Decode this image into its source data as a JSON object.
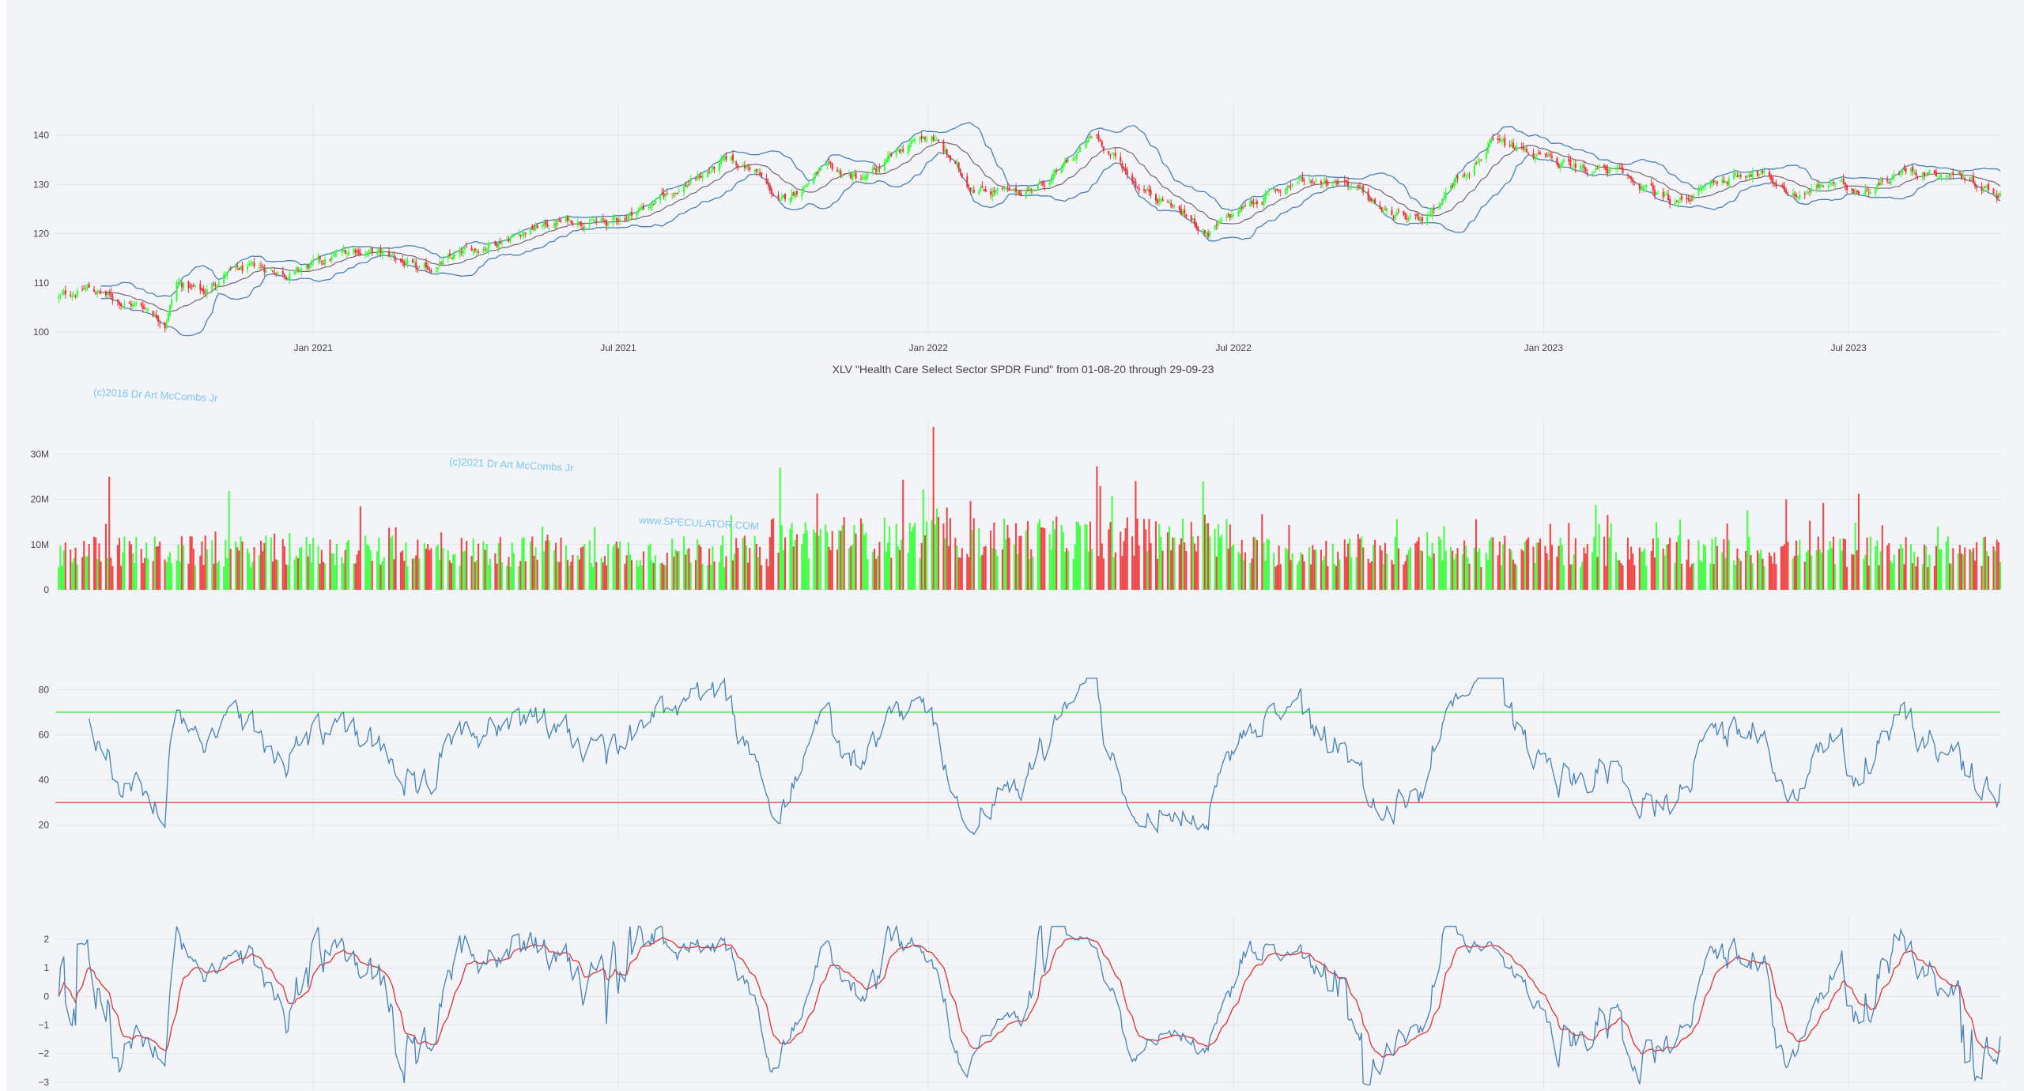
{
  "chart_title": "XLV \"Health Care Select Sector SPDR Fund\" from 01-08-20 through 29-09-23",
  "watermarks": [
    "(c)2016 Dr Art McCombs Jr",
    "(c)2021 Dr Art McCombs Jr",
    "www.SPECULATOR.COM"
  ],
  "colors": {
    "up": "#33ff33",
    "down": "#ee3333",
    "band": "#4682b4",
    "rsi_line": "#4682b4",
    "rsi_upper": "#33dd33",
    "rsi_lower": "#ee3333",
    "osc_fast": "#4682b4",
    "osc_slow": "#dd3333",
    "grid": "#e2e4ea",
    "background": "#f3f4f8"
  },
  "x_ticks": [
    "Jan 2021",
    "Jul 2021",
    "Jan 2022",
    "Jul 2022",
    "Jan 2023",
    "Jul 2023"
  ],
  "chart_data": [
    {
      "type": "candlestick",
      "name": "price",
      "x_range": [
        "2020-08-01",
        "2023-09-29"
      ],
      "ylim": [
        100,
        145
      ],
      "y_ticks": [
        "100",
        "110",
        "120",
        "130",
        "140"
      ],
      "y_tick_values": [
        100,
        110,
        120,
        130,
        140
      ],
      "bollinger_bands": true,
      "anchors": [
        [
          "2020-08-03",
          107
        ],
        [
          "2020-08-20",
          109
        ],
        [
          "2020-09-10",
          106
        ],
        [
          "2020-09-25",
          105
        ],
        [
          "2020-10-05",
          102
        ],
        [
          "2020-10-12",
          110
        ],
        [
          "2020-10-28",
          108
        ],
        [
          "2020-11-10",
          112
        ],
        [
          "2020-12-01",
          113
        ],
        [
          "2020-12-20",
          112
        ],
        [
          "2021-01-05",
          114
        ],
        [
          "2021-01-25",
          117
        ],
        [
          "2021-02-20",
          115
        ],
        [
          "2021-03-05",
          112
        ],
        [
          "2021-03-25",
          115
        ],
        [
          "2021-04-15",
          118
        ],
        [
          "2021-05-10",
          121
        ],
        [
          "2021-06-05",
          123
        ],
        [
          "2021-06-25",
          122
        ],
        [
          "2021-07-20",
          126
        ],
        [
          "2021-08-15",
          131
        ],
        [
          "2021-09-05",
          135
        ],
        [
          "2021-09-20",
          133
        ],
        [
          "2021-10-05",
          126
        ],
        [
          "2021-10-30",
          133
        ],
        [
          "2021-11-25",
          131
        ],
        [
          "2021-12-20",
          138
        ],
        [
          "2022-01-03",
          140
        ],
        [
          "2022-01-25",
          130
        ],
        [
          "2022-02-20",
          128
        ],
        [
          "2022-03-15",
          131
        ],
        [
          "2022-04-10",
          140
        ],
        [
          "2022-05-05",
          130
        ],
        [
          "2022-05-25",
          126
        ],
        [
          "2022-06-16",
          120
        ],
        [
          "2022-07-10",
          126
        ],
        [
          "2022-08-10",
          131
        ],
        [
          "2022-09-05",
          131
        ],
        [
          "2022-09-30",
          124
        ],
        [
          "2022-10-20",
          122
        ],
        [
          "2022-11-10",
          131
        ],
        [
          "2022-12-01",
          138
        ],
        [
          "2022-12-20",
          137
        ],
        [
          "2023-01-10",
          134
        ],
        [
          "2023-02-10",
          133
        ],
        [
          "2023-03-20",
          126
        ],
        [
          "2023-04-10",
          130
        ],
        [
          "2023-05-05",
          133
        ],
        [
          "2023-05-31",
          128
        ],
        [
          "2023-06-20",
          130
        ],
        [
          "2023-07-10",
          129
        ],
        [
          "2023-08-05",
          133
        ],
        [
          "2023-09-05",
          132
        ],
        [
          "2023-09-29",
          128
        ]
      ]
    },
    {
      "type": "bar",
      "name": "volume",
      "ylim": [
        0,
        36000000
      ],
      "y_ticks": [
        "0",
        "10M",
        "20M",
        "30M"
      ],
      "y_tick_values": [
        0,
        10000000,
        20000000,
        30000000
      ],
      "note": "bar color follows candle direction"
    },
    {
      "type": "line",
      "name": "rsi",
      "ylim": [
        15,
        85
      ],
      "y_ticks": [
        "20",
        "40",
        "60",
        "80"
      ],
      "y_tick_values": [
        20,
        40,
        60,
        80
      ],
      "reference_lines": [
        70,
        30
      ]
    },
    {
      "type": "line",
      "name": "oscillator",
      "ylim": [
        -3.2,
        2.5
      ],
      "y_ticks": [
        "2",
        "1",
        "0",
        "−1",
        "−2",
        "−3"
      ],
      "y_tick_values": [
        2,
        1,
        0,
        -1,
        -2,
        -3
      ],
      "series": [
        {
          "role": "fast"
        },
        {
          "role": "signal"
        }
      ]
    }
  ]
}
